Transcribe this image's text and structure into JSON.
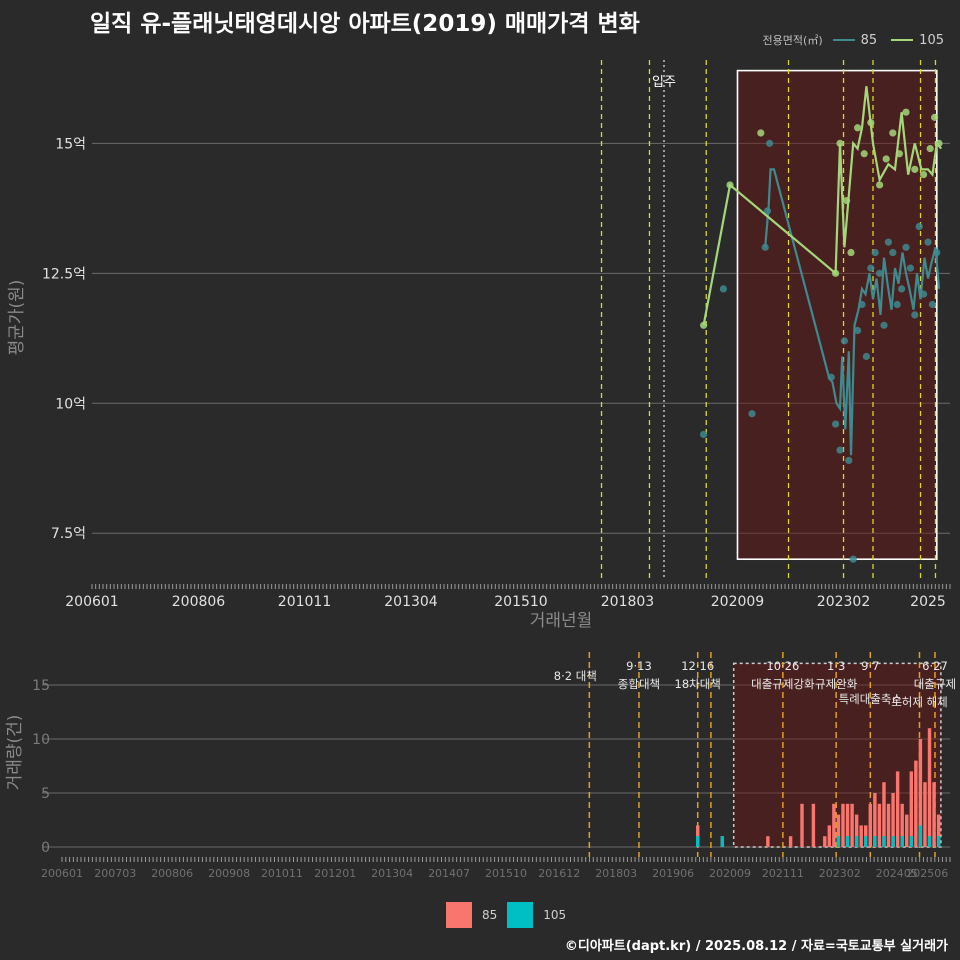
{
  "title": "일직 유-플래닛태영데시앙 아파트(2019) 매매가격 변화",
  "legend_area": {
    "title": "전용면적(㎡)",
    "items": [
      {
        "label": "85",
        "color": "#3d8a8f"
      },
      {
        "label": "105",
        "color": "#a3d77a"
      }
    ]
  },
  "legend_volume": {
    "items": [
      {
        "label": "85",
        "color": "#f8766d"
      },
      {
        "label": "105",
        "color": "#00bfc4"
      }
    ]
  },
  "footer": "©디아파트(dapt.kr) / 2025.08.12 / 자료=국토교통부 실거래가",
  "chart_data": [
    {
      "type": "line",
      "ylabel": "평균가(원)",
      "xlabel": "거래년월",
      "x_range": [
        2006.0,
        2025.5
      ],
      "ylim": [
        6.6,
        16.7
      ],
      "y_ticks": [
        {
          "v": 7.5,
          "label": "7.5억"
        },
        {
          "v": 10,
          "label": "10억"
        },
        {
          "v": 12.5,
          "label": "12.5억"
        },
        {
          "v": 15,
          "label": "15억"
        }
      ],
      "x_ticks": [
        {
          "v": 2006.0,
          "label": "200601"
        },
        {
          "v": 2008.42,
          "label": "200806"
        },
        {
          "v": 2010.83,
          "label": "201011"
        },
        {
          "v": 2013.25,
          "label": "201304"
        },
        {
          "v": 2015.75,
          "label": "201510"
        },
        {
          "v": 2018.17,
          "label": "201803"
        },
        {
          "v": 2020.67,
          "label": "202009"
        },
        {
          "v": 2023.08,
          "label": "202302"
        },
        {
          "v": 2025.0,
          "label": "2025"
        }
      ],
      "event_lines": [
        2017.58,
        2018.67,
        2019.96,
        2021.83,
        2023.08,
        2023.75,
        2024.83,
        2025.17
      ],
      "move_in": {
        "x": 2019.0,
        "label": "입주"
      },
      "highlight": {
        "x": [
          2020.67,
          2025.2
        ],
        "y": [
          7.0,
          16.4
        ]
      },
      "series": [
        {
          "name": "85",
          "line": [
            [
              2021.3,
              13.0
            ],
            [
              2021.38,
              13.8
            ],
            [
              2021.42,
              14.5
            ],
            [
              2021.5,
              14.5
            ],
            [
              2022.75,
              10.5
            ],
            [
              2022.83,
              10.4
            ],
            [
              2022.92,
              10.0
            ],
            [
              2023.0,
              9.9
            ],
            [
              2023.05,
              10.9
            ],
            [
              2023.12,
              9.5
            ],
            [
              2023.2,
              11.0
            ],
            [
              2023.25,
              9.0
            ],
            [
              2023.33,
              11.5
            ],
            [
              2023.42,
              11.8
            ],
            [
              2023.5,
              12.2
            ],
            [
              2023.58,
              12.1
            ],
            [
              2023.67,
              12.5
            ],
            [
              2023.75,
              12.0
            ],
            [
              2023.83,
              12.4
            ],
            [
              2023.92,
              11.7
            ],
            [
              2024.0,
              12.8
            ],
            [
              2024.08,
              12.3
            ],
            [
              2024.17,
              11.8
            ],
            [
              2024.25,
              12.6
            ],
            [
              2024.33,
              12.3
            ],
            [
              2024.42,
              12.9
            ],
            [
              2024.5,
              12.5
            ],
            [
              2024.58,
              12.2
            ],
            [
              2024.67,
              11.8
            ],
            [
              2024.75,
              12.5
            ],
            [
              2024.83,
              12.0
            ],
            [
              2024.92,
              12.8
            ],
            [
              2025.0,
              12.4
            ],
            [
              2025.08,
              12.7
            ],
            [
              2025.17,
              13.0
            ],
            [
              2025.25,
              12.2
            ]
          ],
          "points": [
            [
              2019.9,
              9.4
            ],
            [
              2020.35,
              12.2
            ],
            [
              2021.0,
              9.8
            ],
            [
              2021.3,
              13.0
            ],
            [
              2021.35,
              13.7
            ],
            [
              2021.4,
              15.0
            ],
            [
              2022.8,
              10.5
            ],
            [
              2022.9,
              9.6
            ],
            [
              2023.0,
              9.1
            ],
            [
              2023.1,
              11.2
            ],
            [
              2023.2,
              8.9
            ],
            [
              2023.3,
              7.0
            ],
            [
              2023.4,
              11.4
            ],
            [
              2023.5,
              11.9
            ],
            [
              2023.6,
              10.9
            ],
            [
              2023.7,
              12.6
            ],
            [
              2023.8,
              12.9
            ],
            [
              2023.9,
              12.5
            ],
            [
              2024.0,
              11.5
            ],
            [
              2024.1,
              13.1
            ],
            [
              2024.2,
              12.9
            ],
            [
              2024.3,
              11.9
            ],
            [
              2024.4,
              12.2
            ],
            [
              2024.5,
              13.0
            ],
            [
              2024.6,
              12.6
            ],
            [
              2024.7,
              11.7
            ],
            [
              2024.8,
              13.4
            ],
            [
              2024.9,
              12.1
            ],
            [
              2025.0,
              13.1
            ],
            [
              2025.1,
              11.9
            ],
            [
              2025.2,
              12.9
            ]
          ]
        },
        {
          "name": "105",
          "line": [
            [
              2019.9,
              11.5
            ],
            [
              2020.5,
              14.2
            ],
            [
              2022.9,
              12.5
            ],
            [
              2023.0,
              15.0
            ],
            [
              2023.1,
              13.0
            ],
            [
              2023.2,
              14.0
            ],
            [
              2023.3,
              15.0
            ],
            [
              2023.4,
              14.9
            ],
            [
              2023.5,
              15.3
            ],
            [
              2023.6,
              16.1
            ],
            [
              2023.75,
              15.0
            ],
            [
              2023.9,
              14.3
            ],
            [
              2024.1,
              14.6
            ],
            [
              2024.25,
              14.5
            ],
            [
              2024.4,
              15.6
            ],
            [
              2024.55,
              14.4
            ],
            [
              2024.7,
              15.0
            ],
            [
              2024.85,
              14.5
            ],
            [
              2025.0,
              14.5
            ],
            [
              2025.1,
              14.4
            ],
            [
              2025.2,
              15.0
            ],
            [
              2025.3,
              14.9
            ]
          ],
          "points": [
            [
              2019.9,
              11.5
            ],
            [
              2020.5,
              14.2
            ],
            [
              2021.2,
              15.2
            ],
            [
              2022.9,
              12.5
            ],
            [
              2023.0,
              15.0
            ],
            [
              2023.15,
              13.9
            ],
            [
              2023.25,
              12.9
            ],
            [
              2023.4,
              15.3
            ],
            [
              2023.55,
              14.8
            ],
            [
              2023.7,
              15.4
            ],
            [
              2023.9,
              14.2
            ],
            [
              2024.05,
              14.7
            ],
            [
              2024.2,
              15.2
            ],
            [
              2024.35,
              14.8
            ],
            [
              2024.5,
              15.6
            ],
            [
              2024.7,
              14.5
            ],
            [
              2024.9,
              14.4
            ],
            [
              2025.05,
              14.9
            ],
            [
              2025.15,
              15.5
            ],
            [
              2025.25,
              15.0
            ]
          ]
        }
      ]
    },
    {
      "type": "bar",
      "ylabel": "거래량(건)",
      "x_range": [
        2006.0,
        2025.5
      ],
      "ylim": [
        0,
        17.5
      ],
      "y_ticks": [
        0,
        5,
        10,
        15
      ],
      "x_ticks": [
        {
          "v": 2006.0,
          "label": "200601"
        },
        {
          "v": 2007.17,
          "label": "200703"
        },
        {
          "v": 2008.42,
          "label": "200806"
        },
        {
          "v": 2009.67,
          "label": "200908"
        },
        {
          "v": 2010.83,
          "label": "201011"
        },
        {
          "v": 2012.0,
          "label": "201201"
        },
        {
          "v": 2013.25,
          "label": "201304"
        },
        {
          "v": 2014.5,
          "label": "201407"
        },
        {
          "v": 2015.75,
          "label": "201510"
        },
        {
          "v": 2016.92,
          "label": "201612"
        },
        {
          "v": 2018.17,
          "label": "201803"
        },
        {
          "v": 2019.42,
          "label": "201906"
        },
        {
          "v": 2020.67,
          "label": "202009"
        },
        {
          "v": 2021.83,
          "label": "202111"
        },
        {
          "v": 2023.08,
          "label": "202302"
        },
        {
          "v": 2024.33,
          "label": "202405"
        },
        {
          "v": 2025.0,
          "label": "202506"
        }
      ],
      "policies": [
        {
          "x": 2017.58,
          "lines": [
            "8·2 대책"
          ]
        },
        {
          "x": 2018.67,
          "lines": [
            "9·13",
            "종합대책"
          ]
        },
        {
          "x": 2019.96,
          "lines": [
            "12·16",
            "18차대책"
          ]
        },
        {
          "x": 2021.83,
          "lines": [
            "10·26",
            "대출규제강화"
          ]
        },
        {
          "x": 2023.0,
          "lines": [
            "1·3",
            "규제완화"
          ]
        },
        {
          "x": 2023.75,
          "lines": [
            "9·7",
            "특례대출축소"
          ]
        },
        {
          "x": 2024.83,
          "lines": [
            "토허제 해제"
          ]
        },
        {
          "x": 2025.17,
          "lines": [
            "6·27",
            "대출규제"
          ]
        }
      ],
      "event_lines_extra": [
        2020.25
      ],
      "highlight": {
        "x": [
          2020.75,
          2025.3
        ],
        "y": [
          0,
          17.0
        ]
      },
      "series": [
        {
          "name": "85",
          "values": [
            [
              2019.96,
              2
            ],
            [
              2020.5,
              1
            ],
            [
              2021.5,
              1
            ],
            [
              2022.0,
              1
            ],
            [
              2022.25,
              4
            ],
            [
              2022.5,
              4
            ],
            [
              2022.75,
              1
            ],
            [
              2022.85,
              2
            ],
            [
              2022.95,
              4
            ],
            [
              2023.05,
              3
            ],
            [
              2023.15,
              4
            ],
            [
              2023.25,
              4
            ],
            [
              2023.35,
              4
            ],
            [
              2023.45,
              3
            ],
            [
              2023.55,
              2
            ],
            [
              2023.65,
              2
            ],
            [
              2023.75,
              4
            ],
            [
              2023.85,
              5
            ],
            [
              2023.95,
              4
            ],
            [
              2024.05,
              6
            ],
            [
              2024.15,
              4
            ],
            [
              2024.25,
              5
            ],
            [
              2024.35,
              7
            ],
            [
              2024.45,
              4
            ],
            [
              2024.55,
              3
            ],
            [
              2024.65,
              7
            ],
            [
              2024.75,
              8
            ],
            [
              2024.85,
              10
            ],
            [
              2024.95,
              6
            ],
            [
              2025.05,
              11
            ],
            [
              2025.15,
              6
            ],
            [
              2025.25,
              3
            ]
          ]
        },
        {
          "name": "105",
          "values": [
            [
              2019.96,
              1
            ],
            [
              2020.5,
              1
            ],
            [
              2023.05,
              1
            ],
            [
              2023.25,
              1
            ],
            [
              2023.45,
              1
            ],
            [
              2023.65,
              1
            ],
            [
              2023.85,
              1
            ],
            [
              2024.05,
              1
            ],
            [
              2024.25,
              1
            ],
            [
              2024.45,
              1
            ],
            [
              2024.65,
              1
            ],
            [
              2024.85,
              2
            ],
            [
              2025.05,
              1
            ],
            [
              2025.25,
              1
            ]
          ]
        }
      ]
    }
  ]
}
